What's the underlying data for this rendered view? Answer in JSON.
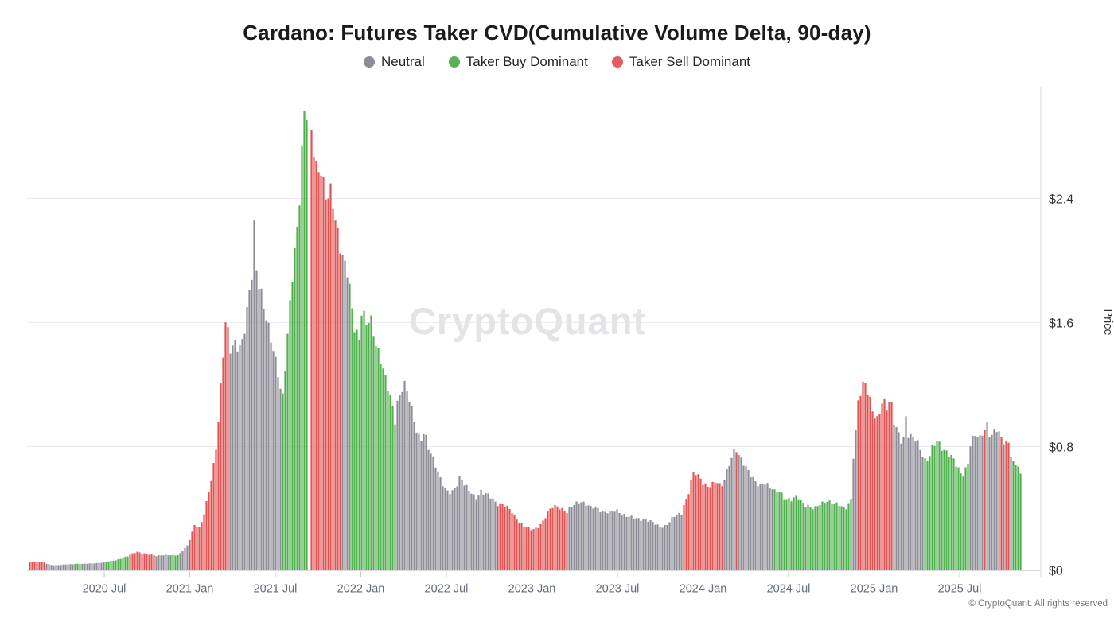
{
  "header": {
    "title": "Cardano: Futures Taker CVD(Cumulative Volume Delta, 90-day)"
  },
  "legend": {
    "items": [
      {
        "label": "Neutral",
        "regime": "neutral",
        "color": "#8d8d97"
      },
      {
        "label": "Taker Buy Dominant",
        "regime": "taker_buy",
        "color": "#55b354"
      },
      {
        "label": "Taker Sell Dominant",
        "regime": "taker_sell",
        "color": "#e45c5b"
      }
    ]
  },
  "watermark": {
    "text": "CryptoQuant",
    "color": "#e3e3e8"
  },
  "footer": {
    "text": "© CryptoQuant. All rights reserved"
  },
  "colors": {
    "neutral": "#8d8d97",
    "taker_buy": "#4fb04e",
    "taker_sell": "#e25252",
    "gridline": "#ededf1",
    "axis_line": "#d9d9de",
    "tick_mark": "#c9c9cf",
    "x_label": "#646c78",
    "y_label": "#2f2f33",
    "axis_name": "#333333"
  },
  "y_axis": {
    "name": "Price",
    "ticks": [
      {
        "value": 0,
        "label": "$0"
      },
      {
        "value": 0.8,
        "label": "$0.8"
      },
      {
        "value": 1.6,
        "label": "$1.6"
      },
      {
        "value": 2.4,
        "label": "$2.4"
      }
    ]
  },
  "x_axis": {
    "ticks": [
      {
        "t": 2020.5,
        "label": "2020 Jul"
      },
      {
        "t": 2021.0,
        "label": "2021 Jan"
      },
      {
        "t": 2021.5,
        "label": "2021 Jul"
      },
      {
        "t": 2022.0,
        "label": "2022 Jan"
      },
      {
        "t": 2022.5,
        "label": "2022 Jul"
      },
      {
        "t": 2023.0,
        "label": "2023 Jan"
      },
      {
        "t": 2023.5,
        "label": "2023 Jul"
      },
      {
        "t": 2024.0,
        "label": "2024 Jan"
      },
      {
        "t": 2024.5,
        "label": "2024 Jul"
      },
      {
        "t": 2025.0,
        "label": "2025 Jan"
      },
      {
        "t": 2025.5,
        "label": "2025 Jul"
      }
    ]
  },
  "chart_data": {
    "type": "bar",
    "title": "Cardano: Futures Taker CVD(Cumulative Volume Delta, 90-day)",
    "x_unit": "decimal_year",
    "y_unit": "USD price",
    "xlim": [
      2020.05,
      2025.87
    ],
    "ylim": [
      0,
      3.12
    ],
    "grid": "horizontal",
    "legend_position": "top",
    "regime_colors": {
      "neutral": "#8d8d97",
      "taker_buy": "#4fb04e",
      "taker_sell": "#e25252"
    },
    "segments": [
      {
        "regime": "taker_sell",
        "points": [
          [
            2020.06,
            0.052
          ],
          [
            2020.09,
            0.06
          ],
          [
            2020.13,
            0.058
          ],
          [
            2020.16,
            0.048
          ]
        ]
      },
      {
        "regime": "neutral",
        "points": [
          [
            2020.16,
            0.045
          ],
          [
            2020.2,
            0.036
          ],
          [
            2020.25,
            0.038
          ],
          [
            2020.32,
            0.042
          ]
        ]
      },
      {
        "regime": "taker_buy",
        "points": [
          [
            2020.32,
            0.044
          ],
          [
            2020.36,
            0.046
          ]
        ]
      },
      {
        "regime": "neutral",
        "points": [
          [
            2020.36,
            0.044
          ],
          [
            2020.43,
            0.047
          ],
          [
            2020.5,
            0.052
          ]
        ]
      },
      {
        "regime": "taker_buy",
        "points": [
          [
            2020.5,
            0.055
          ],
          [
            2020.56,
            0.068
          ],
          [
            2020.61,
            0.082
          ],
          [
            2020.65,
            0.095
          ]
        ]
      },
      {
        "regime": "taker_sell",
        "points": [
          [
            2020.65,
            0.1
          ],
          [
            2020.69,
            0.125
          ],
          [
            2020.72,
            0.115
          ],
          [
            2020.76,
            0.105
          ],
          [
            2020.8,
            0.098
          ]
        ]
      },
      {
        "regime": "neutral",
        "points": [
          [
            2020.8,
            0.096
          ],
          [
            2020.88,
            0.1
          ]
        ]
      },
      {
        "regime": "taker_buy",
        "points": [
          [
            2020.88,
            0.1
          ],
          [
            2020.94,
            0.105
          ]
        ]
      },
      {
        "regime": "neutral",
        "points": [
          [
            2020.94,
            0.11
          ],
          [
            2020.995,
            0.165
          ]
        ]
      },
      {
        "regime": "taker_sell",
        "points": [
          [
            2020.995,
            0.18
          ],
          [
            2021.03,
            0.3
          ],
          [
            2021.06,
            0.28
          ],
          [
            2021.09,
            0.4
          ],
          [
            2021.12,
            0.55
          ],
          [
            2021.15,
            0.75
          ],
          [
            2021.17,
            1.0
          ],
          [
            2021.19,
            1.3
          ],
          [
            2021.21,
            1.58
          ],
          [
            2021.235,
            1.45
          ]
        ]
      },
      {
        "regime": "neutral",
        "points": [
          [
            2021.235,
            1.42
          ],
          [
            2021.27,
            1.52
          ],
          [
            2021.3,
            1.46
          ],
          [
            2021.33,
            1.58
          ],
          [
            2021.36,
            1.85
          ],
          [
            2021.372,
            1.95
          ],
          [
            2021.379,
            2.31
          ],
          [
            2021.386,
            1.98
          ],
          [
            2021.41,
            1.86
          ],
          [
            2021.43,
            1.74
          ],
          [
            2021.46,
            1.56
          ],
          [
            2021.49,
            1.42
          ],
          [
            2021.52,
            1.26
          ],
          [
            2021.54,
            1.08
          ]
        ]
      },
      {
        "regime": "taker_buy",
        "points": [
          [
            2021.54,
            1.05
          ],
          [
            2021.57,
            1.45
          ],
          [
            2021.6,
            1.92
          ],
          [
            2021.63,
            2.3
          ],
          [
            2021.65,
            2.62
          ],
          [
            2021.668,
            2.96
          ],
          [
            2021.69,
            2.87
          ]
        ]
      },
      {
        "regime": "taker_sell",
        "points": [
          [
            2021.7,
            2.9
          ],
          [
            2021.72,
            2.7
          ],
          [
            2021.74,
            2.58
          ],
          [
            2021.76,
            2.68
          ],
          [
            2021.78,
            2.52
          ],
          [
            2021.81,
            2.4
          ],
          [
            2021.83,
            2.46
          ],
          [
            2021.85,
            2.26
          ],
          [
            2021.87,
            2.16
          ],
          [
            2021.885,
            2.06
          ]
        ]
      },
      {
        "regime": "neutral",
        "points": [
          [
            2021.885,
            2.02
          ],
          [
            2021.925,
            1.88
          ]
        ]
      },
      {
        "regime": "taker_buy",
        "points": [
          [
            2021.925,
            1.86
          ],
          [
            2021.96,
            1.6
          ],
          [
            2021.99,
            1.54
          ],
          [
            2022.005,
            1.72
          ],
          [
            2022.03,
            1.58
          ],
          [
            2022.06,
            1.56
          ],
          [
            2022.09,
            1.44
          ],
          [
            2022.12,
            1.38
          ],
          [
            2022.14,
            1.27
          ],
          [
            2022.16,
            1.18
          ],
          [
            2022.18,
            1.08
          ],
          [
            2022.2,
            0.97
          ]
        ]
      },
      {
        "regime": "neutral",
        "points": [
          [
            2022.2,
            1.04
          ],
          [
            2022.25,
            1.2
          ],
          [
            2022.28,
            1.1
          ],
          [
            2022.32,
            0.94
          ],
          [
            2022.35,
            0.87
          ],
          [
            2022.37,
            0.91
          ],
          [
            2022.4,
            0.75
          ],
          [
            2022.43,
            0.69
          ],
          [
            2022.47,
            0.59
          ],
          [
            2022.5,
            0.52
          ],
          [
            2022.53,
            0.5
          ],
          [
            2022.56,
            0.55
          ],
          [
            2022.58,
            0.61
          ],
          [
            2022.61,
            0.54
          ],
          [
            2022.64,
            0.5
          ],
          [
            2022.67,
            0.47
          ],
          [
            2022.7,
            0.53
          ],
          [
            2022.73,
            0.5
          ],
          [
            2022.76,
            0.46
          ],
          [
            2022.788,
            0.43
          ]
        ]
      },
      {
        "regime": "taker_sell",
        "points": [
          [
            2022.788,
            0.42
          ],
          [
            2022.83,
            0.44
          ],
          [
            2022.87,
            0.4
          ],
          [
            2022.9,
            0.35
          ],
          [
            2022.93,
            0.31
          ],
          [
            2022.96,
            0.28
          ],
          [
            2023.0,
            0.26
          ],
          [
            2023.03,
            0.28
          ],
          [
            2023.06,
            0.32
          ],
          [
            2023.09,
            0.37
          ],
          [
            2023.12,
            0.4
          ],
          [
            2023.15,
            0.41
          ],
          [
            2023.18,
            0.4
          ],
          [
            2023.207,
            0.38
          ]
        ]
      },
      {
        "regime": "neutral",
        "points": [
          [
            2023.207,
            0.39
          ],
          [
            2023.25,
            0.43
          ],
          [
            2023.28,
            0.45
          ],
          [
            2023.31,
            0.43
          ],
          [
            2023.34,
            0.4
          ],
          [
            2023.38,
            0.41
          ],
          [
            2023.42,
            0.39
          ],
          [
            2023.46,
            0.37
          ],
          [
            2023.5,
            0.38
          ],
          [
            2023.55,
            0.36
          ],
          [
            2023.6,
            0.34
          ],
          [
            2023.65,
            0.33
          ],
          [
            2023.7,
            0.31
          ],
          [
            2023.75,
            0.29
          ],
          [
            2023.79,
            0.3
          ],
          [
            2023.83,
            0.34
          ],
          [
            2023.875,
            0.37
          ]
        ]
      },
      {
        "regime": "taker_sell",
        "points": [
          [
            2023.875,
            0.4
          ],
          [
            2023.91,
            0.48
          ],
          [
            2023.93,
            0.58
          ],
          [
            2023.95,
            0.64
          ],
          [
            2023.97,
            0.62
          ],
          [
            2024.0,
            0.57
          ],
          [
            2024.03,
            0.53
          ],
          [
            2024.06,
            0.55
          ],
          [
            2024.08,
            0.58
          ],
          [
            2024.1,
            0.56
          ],
          [
            2024.122,
            0.58
          ]
        ]
      },
      {
        "regime": "neutral",
        "points": [
          [
            2024.122,
            0.6
          ],
          [
            2024.15,
            0.68
          ],
          [
            2024.18,
            0.74
          ],
          [
            2024.19,
            0.77
          ],
          [
            2024.21,
            0.73
          ],
          [
            2024.24,
            0.7
          ],
          [
            2024.27,
            0.64
          ],
          [
            2024.3,
            0.58
          ],
          [
            2024.33,
            0.55
          ],
          [
            2024.36,
            0.57
          ],
          [
            2024.39,
            0.53
          ],
          [
            2024.416,
            0.51
          ]
        ]
      },
      {
        "regime": "taker_buy",
        "points": [
          [
            2024.416,
            0.5
          ],
          [
            2024.45,
            0.52
          ],
          [
            2024.48,
            0.48
          ],
          [
            2024.52,
            0.45
          ],
          [
            2024.55,
            0.47
          ],
          [
            2024.58,
            0.44
          ],
          [
            2024.62,
            0.42
          ],
          [
            2024.65,
            0.4
          ],
          [
            2024.68,
            0.43
          ],
          [
            2024.72,
            0.45
          ],
          [
            2024.76,
            0.42
          ],
          [
            2024.8,
            0.43
          ],
          [
            2024.83,
            0.41
          ],
          [
            2024.867,
            0.46
          ]
        ]
      },
      {
        "regime": "neutral",
        "points": [
          [
            2024.867,
            0.6
          ],
          [
            2024.898,
            0.92
          ]
        ]
      },
      {
        "regime": "taker_sell",
        "points": [
          [
            2024.898,
            1.02
          ],
          [
            2024.93,
            1.18
          ],
          [
            2024.95,
            1.23
          ],
          [
            2024.97,
            1.14
          ],
          [
            2025.0,
            1.0
          ],
          [
            2025.02,
            0.97
          ],
          [
            2025.04,
            1.07
          ],
          [
            2025.055,
            1.12
          ],
          [
            2025.07,
            1.05
          ],
          [
            2025.09,
            1.08
          ],
          [
            2025.113,
            1.02
          ]
        ]
      },
      {
        "regime": "neutral",
        "points": [
          [
            2025.113,
            0.95
          ],
          [
            2025.13,
            0.9
          ],
          [
            2025.16,
            0.85
          ],
          [
            2025.175,
            0.88
          ],
          [
            2025.182,
            1.13
          ],
          [
            2025.19,
            0.92
          ],
          [
            2025.21,
            0.88
          ],
          [
            2025.23,
            0.85
          ],
          [
            2025.26,
            0.79
          ],
          [
            2025.287,
            0.73
          ]
        ]
      },
      {
        "regime": "taker_buy",
        "points": [
          [
            2025.287,
            0.7
          ],
          [
            2025.32,
            0.74
          ],
          [
            2025.34,
            0.8
          ],
          [
            2025.365,
            0.84
          ],
          [
            2025.4,
            0.79
          ],
          [
            2025.43,
            0.76
          ],
          [
            2025.46,
            0.71
          ],
          [
            2025.49,
            0.65
          ],
          [
            2025.515,
            0.62
          ],
          [
            2025.53,
            0.66
          ],
          [
            2025.55,
            0.72
          ],
          [
            2025.555,
            0.78
          ]
        ]
      },
      {
        "regime": "neutral",
        "points": [
          [
            2025.555,
            0.82
          ],
          [
            2025.59,
            0.86
          ],
          [
            2025.62,
            0.83
          ],
          [
            2025.64,
            0.9
          ],
          [
            2025.66,
            0.95
          ],
          [
            2025.68,
            0.87
          ],
          [
            2025.7,
            0.9
          ],
          [
            2025.72,
            0.92
          ],
          [
            2025.74,
            0.86
          ],
          [
            2025.762,
            0.84
          ]
        ]
      },
      {
        "regime": "taker_sell",
        "points": [
          [
            2025.762,
            0.84
          ],
          [
            2025.787,
            0.82
          ]
        ]
      },
      {
        "regime": "neutral",
        "points": [
          [
            2025.787,
            0.76
          ],
          [
            2025.8,
            0.74
          ]
        ]
      },
      {
        "regime": "taker_buy",
        "points": [
          [
            2025.8,
            0.72
          ],
          [
            2025.82,
            0.66
          ],
          [
            2025.84,
            0.68
          ],
          [
            2025.858,
            0.6
          ]
        ]
      }
    ],
    "single_bar_overrides": [
      {
        "t": 2024.193,
        "regime": "taker_sell"
      },
      {
        "t": 2025.648,
        "regime": "taker_sell"
      },
      {
        "t": 2025.744,
        "regime": "taker_sell"
      }
    ]
  }
}
